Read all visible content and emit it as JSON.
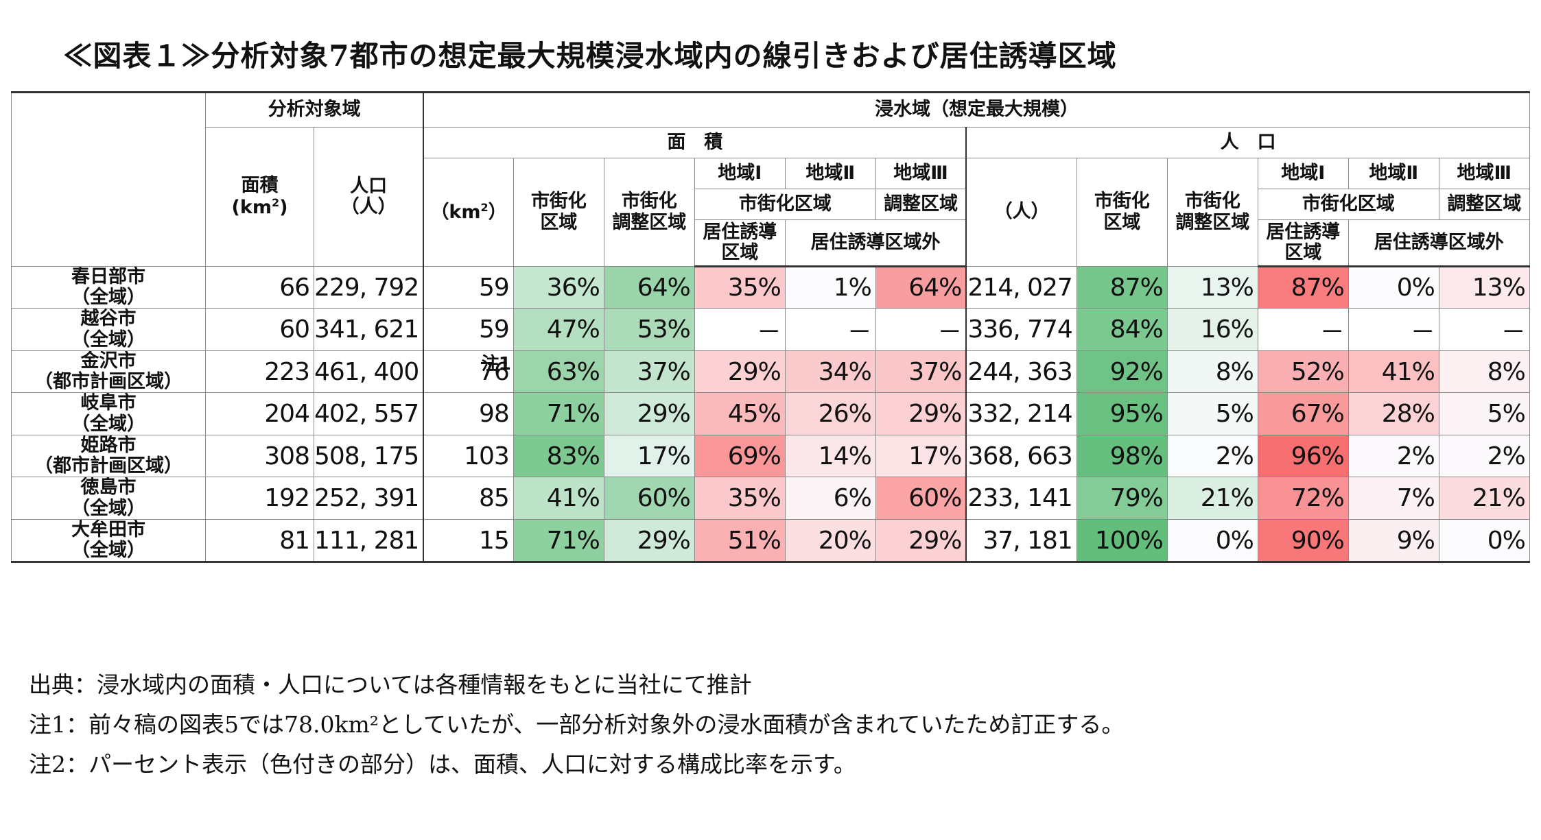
{
  "title": "≪図表１≫分析対象7都市の想定最大規模浸水域内の線引きおよび居住誘導区域",
  "header": {
    "analysis_target": "分析対象域",
    "flood_area": "浸水域（想定最大規模）",
    "area_group": "面　積",
    "pop_group": "人　口",
    "area_km2_1": "面積",
    "area_km2_2": "(km",
    "area_km2_sup": "2",
    "area_km2_3": ")",
    "population_1": "人口",
    "population_2": "（人）",
    "flood_km2_1": "（km",
    "flood_km2_sup": "2",
    "flood_km2_2": "）",
    "flood_people": "（人）",
    "urban_1": "市街化",
    "urban_2": "区域",
    "control_1": "市街化",
    "control_2": "調整区域",
    "zone1": "地域Ⅰ",
    "zone2": "地域Ⅱ",
    "zone3": "地域Ⅲ",
    "urban_area": "市街化区域",
    "control_area": "調整区域",
    "induce_1": "居住誘導",
    "induce_2": "区域",
    "outside": "居住誘導区域外"
  },
  "colors": {
    "green_max": "#63be7b",
    "red_max": "#f8696b",
    "neutral": "#fcfcff"
  },
  "rows": [
    {
      "city": "春日部市",
      "scope": "（全域）",
      "area": "66",
      "pop": "229, 792",
      "farea": "59",
      "fnote": "",
      "a": [
        "36%",
        "64%",
        "35%",
        "1%",
        "64%"
      ],
      "fpop": "214, 027",
      "p": [
        "87%",
        "13%",
        "87%",
        "0%",
        "13%"
      ]
    },
    {
      "city": "越谷市",
      "scope": "（全域）",
      "area": "60",
      "pop": "341, 621",
      "farea": "59",
      "fnote": "",
      "a": [
        "47%",
        "53%",
        "－",
        "－",
        "－"
      ],
      "fpop": "336, 774",
      "p": [
        "84%",
        "16%",
        "－",
        "－",
        "－"
      ]
    },
    {
      "city": "金沢市",
      "scope": "（都市計画区域）",
      "area": "223",
      "pop": "461, 400",
      "farea": "76",
      "fnote": "注1",
      "a": [
        "63%",
        "37%",
        "29%",
        "34%",
        "37%"
      ],
      "fpop": "244, 363",
      "p": [
        "92%",
        "8%",
        "52%",
        "41%",
        "8%"
      ]
    },
    {
      "city": "岐阜市",
      "scope": "（全域）",
      "area": "204",
      "pop": "402, 557",
      "farea": "98",
      "fnote": "",
      "a": [
        "71%",
        "29%",
        "45%",
        "26%",
        "29%"
      ],
      "fpop": "332, 214",
      "p": [
        "95%",
        "5%",
        "67%",
        "28%",
        "5%"
      ]
    },
    {
      "city": "姫路市",
      "scope": "（都市計画区域）",
      "area": "308",
      "pop": "508, 175",
      "farea": "103",
      "fnote": "",
      "a": [
        "83%",
        "17%",
        "69%",
        "14%",
        "17%"
      ],
      "fpop": "368, 663",
      "p": [
        "98%",
        "2%",
        "96%",
        "2%",
        "2%"
      ]
    },
    {
      "city": "徳島市",
      "scope": "（全域）",
      "area": "192",
      "pop": "252, 391",
      "farea": "85",
      "fnote": "",
      "a": [
        "41%",
        "60%",
        "35%",
        "6%",
        "60%"
      ],
      "fpop": "233, 141",
      "p": [
        "79%",
        "21%",
        "72%",
        "7%",
        "21%"
      ]
    },
    {
      "city": "大牟田市",
      "scope": "（全域）",
      "area": "81",
      "pop": "111, 281",
      "farea": "15",
      "fnote": "",
      "a": [
        "71%",
        "29%",
        "51%",
        "20%",
        "29%"
      ],
      "fpop": "37, 181",
      "p": [
        "100%",
        "0%",
        "90%",
        "9%",
        "0%"
      ]
    }
  ],
  "notes": [
    "出典：浸水域内の面積・人口については各種情報をもとに当社にて推計",
    "注1：前々稿の図表5では78.0km²としていたが、一部分析対象外の浸水面積が含まれていたため訂正する。",
    "注2：パーセント表示（色付きの部分）は、面積、人口に対する構成比率を示す。"
  ]
}
